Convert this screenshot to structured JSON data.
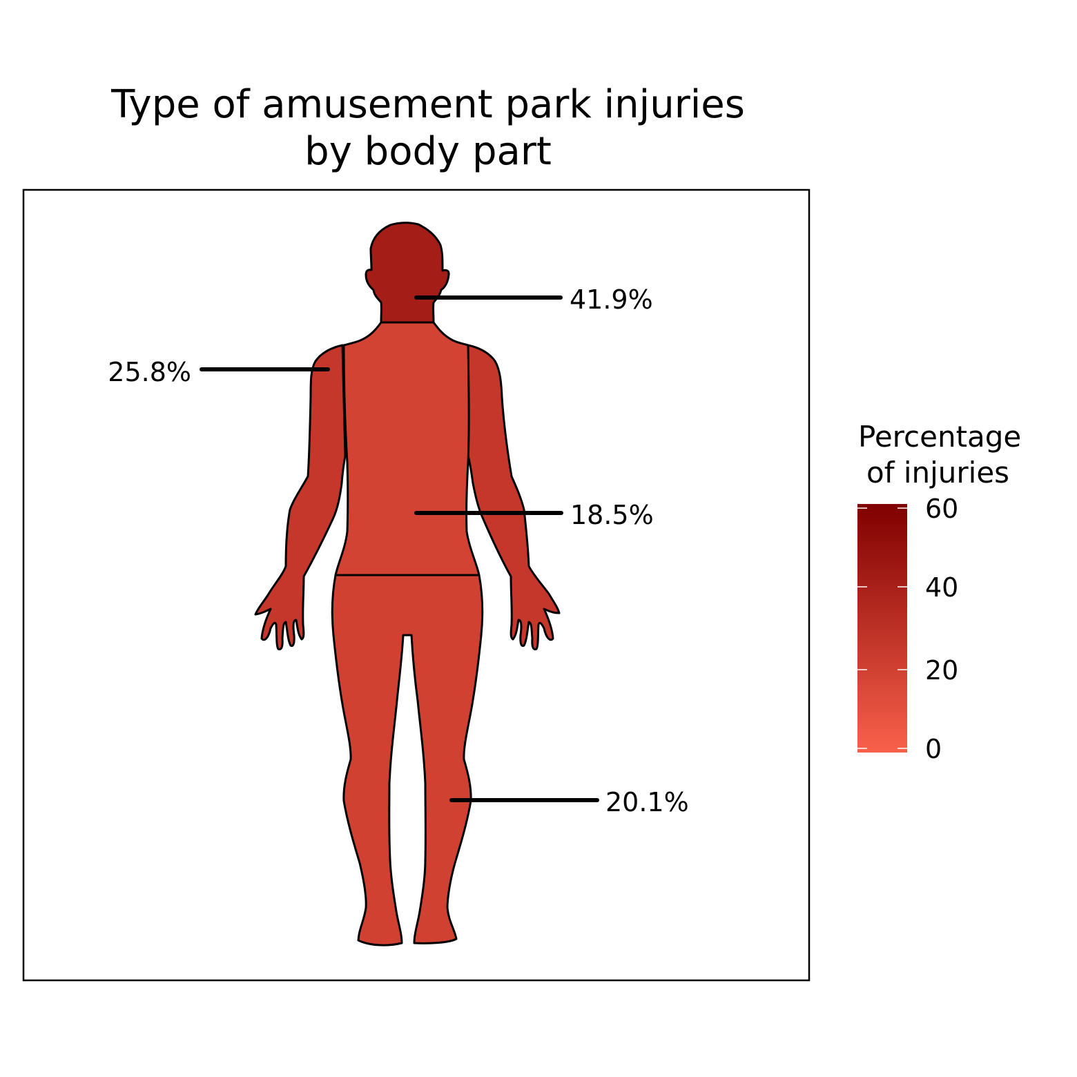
{
  "chart_data": {
    "type": "other",
    "title_lines": [
      "Type of amusement park injuries",
      "by body part"
    ],
    "regions": [
      {
        "id": "head",
        "value": 41.9,
        "label": "41.9%"
      },
      {
        "id": "arms",
        "value": 25.8,
        "label": "25.8%"
      },
      {
        "id": "torso",
        "value": 18.5,
        "label": "18.5%"
      },
      {
        "id": "legs",
        "value": 20.1,
        "label": "20.1%"
      }
    ],
    "legend": {
      "title_lines": [
        "Percentage",
        "of injuries"
      ],
      "ticks": [
        0,
        20,
        40,
        60
      ],
      "tick_labels": [
        "0",
        "20",
        "40",
        "60"
      ],
      "range": [
        0,
        60
      ],
      "color_low": "#f9614b",
      "color_high": "#7f0000",
      "placement": "right"
    }
  }
}
